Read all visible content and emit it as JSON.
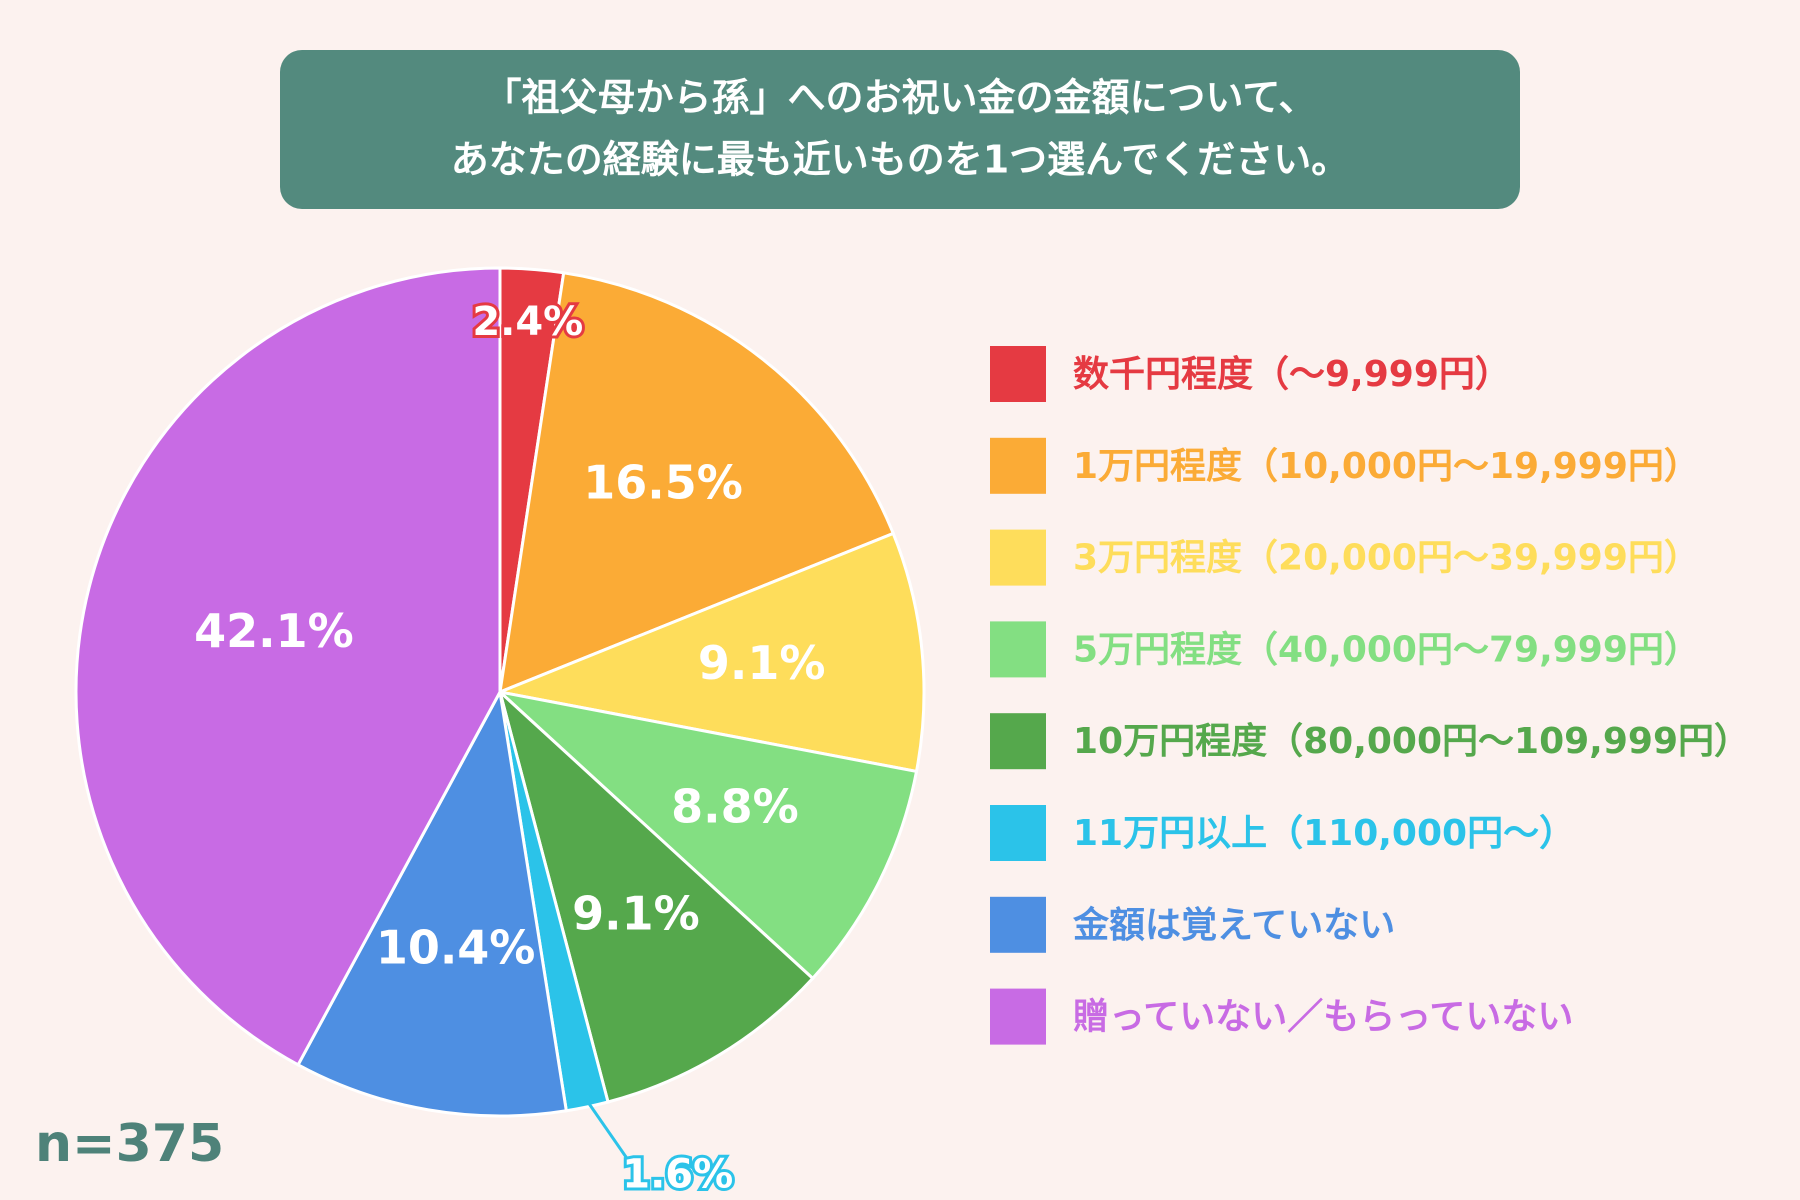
{
  "chart_data": {
    "type": "pie",
    "title": [
      "「祖父母から孫」へのお祝い金の金額について、",
      "あなたの経験に最も近いものを1つ選んでください。"
    ],
    "annotation": "n=375",
    "categories": [
      "数千円程度（〜9,999円）",
      "1万円程度（10,000円〜19,999円）",
      "3万円程度（20,000円〜39,999円）",
      "5万円程度（40,000円〜79,999円）",
      "10万円程度（80,000円〜109,999円）",
      "11万円以上（110,000円〜）",
      "金額は覚えていない",
      "贈っていない／もらっていない"
    ],
    "values": [
      2.4,
      16.5,
      9.1,
      8.8,
      9.1,
      1.6,
      10.4,
      42.1
    ],
    "value_labels": [
      "2.4%",
      "16.5%",
      "9.1%",
      "8.8%",
      "9.1%",
      "1.6%",
      "10.4%",
      "42.1%"
    ],
    "colors": [
      "#e53a42",
      "#fbab36",
      "#fedd5b",
      "#83df82",
      "#55a84c",
      "#2bc3e9",
      "#4e8fe2",
      "#c86be4"
    ],
    "legend": "right"
  }
}
